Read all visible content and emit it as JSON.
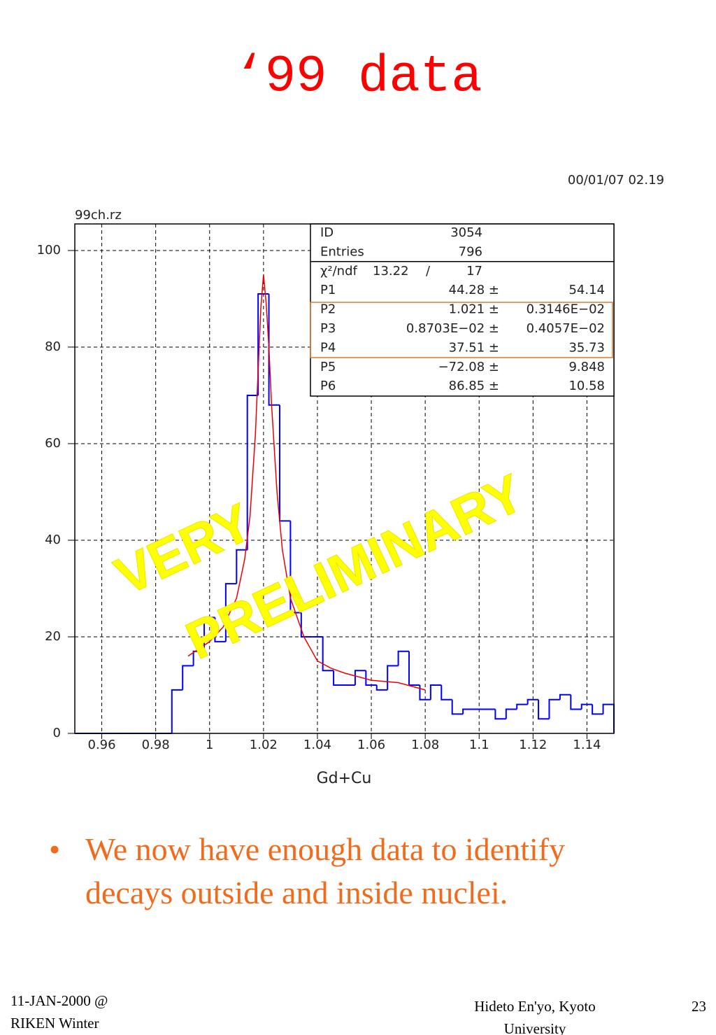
{
  "slide_title": "‘99 data",
  "bullet": "We now have enough data to identify decays outside and inside nuclei.",
  "footer": {
    "left": "11-JAN-2000 @ RIKEN Winter",
    "center": "Hideto En'yo, Kyoto University",
    "page": "23"
  },
  "chart_data": {
    "type": "histogram",
    "file_label": "99ch.rz",
    "timestamp": "00/01/07  02.19",
    "x_label": "Gd+Cu",
    "color": "#0000ff",
    "bins": [
      0.95,
      0.954,
      0.958,
      0.962,
      0.966,
      0.97,
      0.974,
      0.978,
      0.982,
      0.986,
      0.99,
      0.994,
      0.998,
      1.002,
      1.006,
      1.01,
      1.014,
      1.018,
      1.022,
      1.026,
      1.03,
      1.034,
      1.038,
      1.042,
      1.046,
      1.05,
      1.054,
      1.058,
      1.062,
      1.066,
      1.07,
      1.074,
      1.078,
      1.082,
      1.086,
      1.09,
      1.094,
      1.098,
      1.102,
      1.106,
      1.11,
      1.114,
      1.118,
      1.122,
      1.126,
      1.13,
      1.134,
      1.138,
      1.142,
      1.146,
      1.15
    ],
    "values": [
      0,
      0,
      0,
      0,
      0,
      0,
      0,
      0,
      0,
      9,
      14,
      17,
      24,
      19,
      31,
      38,
      70,
      91,
      68,
      44,
      25,
      20,
      20,
      13,
      10,
      10,
      13,
      10,
      9,
      14,
      17,
      10,
      7,
      10,
      7,
      4,
      5,
      5,
      5,
      3,
      5,
      6,
      7,
      3,
      7,
      8,
      5,
      6,
      4,
      6
    ],
    "fit": {
      "color": "#ee0000",
      "x": [
        0.992,
        1.0,
        1.005,
        1.01,
        1.013,
        1.015,
        1.017,
        1.018,
        1.019,
        1.02,
        1.021,
        1.022,
        1.023,
        1.025,
        1.027,
        1.03,
        1.035,
        1.04,
        1.045,
        1.05,
        1.06,
        1.07,
        1.08
      ],
      "y": [
        16,
        19,
        22,
        28,
        36,
        45,
        62,
        75,
        88,
        95,
        89,
        80,
        68,
        50,
        38,
        28,
        20,
        15,
        13.5,
        12.5,
        11,
        10.5,
        9
      ]
    },
    "xlim": [
      0.95,
      1.15
    ],
    "xticks": [
      0.96,
      0.98,
      1,
      1.02,
      1.04,
      1.06,
      1.08,
      1.1,
      1.12,
      1.14
    ],
    "ylim": [
      0,
      105.5
    ],
    "yticks": [
      0,
      20,
      40,
      60,
      80,
      100
    ],
    "grid": true,
    "stats": {
      "rows": [
        [
          "ID",
          "3054"
        ],
        [
          "Entries",
          "796"
        ],
        [
          "χ²/ndf",
          "13.22",
          "/",
          "17"
        ],
        [
          "P1",
          "44.28 ±",
          "54.14"
        ],
        [
          "P2",
          "1.021 ±",
          "0.3146E−02"
        ],
        [
          "P3",
          "0.8703E−02 ±",
          "0.4057E−02"
        ],
        [
          "P4",
          "37.51 ±",
          "35.73"
        ],
        [
          "P5",
          "−72.08 ±",
          "9.848"
        ],
        [
          "P6",
          "86.85 ±",
          "10.58"
        ]
      ]
    },
    "annotations": [
      "VERY",
      "PRELIMINARY"
    ]
  }
}
